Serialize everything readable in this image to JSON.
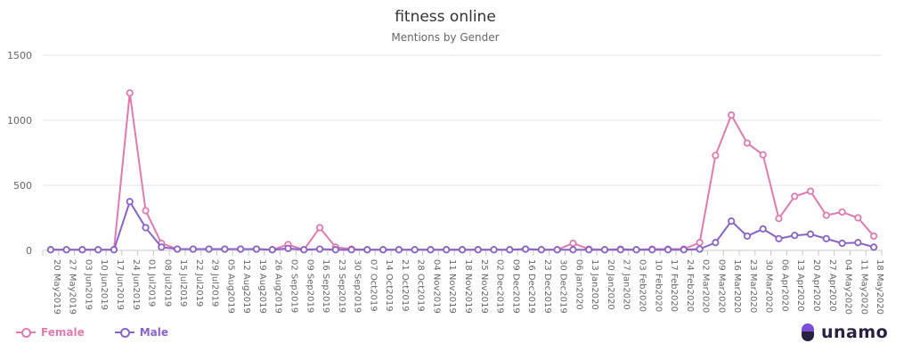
{
  "chart_data": {
    "type": "line",
    "title": "fitness online",
    "subtitle": "Mentions by Gender",
    "xlabel": "",
    "ylabel": "",
    "ylim": [
      0,
      1500
    ],
    "yticks": [
      0,
      500,
      1000,
      1500
    ],
    "grid": true,
    "legend_position": "bottom-left",
    "categories": [
      "20 May2019",
      "27 May2019",
      "03 Jun2019",
      "10 Jun2019",
      "17 Jun2019",
      "24 Jun2019",
      "01 Jul2019",
      "08 Jul2019",
      "15 Jul2019",
      "22 Jul2019",
      "29 Jul2019",
      "05 Aug2019",
      "12 Aug2019",
      "19 Aug2019",
      "26 Aug2019",
      "02 Sep2019",
      "09 Sep2019",
      "16 Sep2019",
      "23 Sep2019",
      "30 Sep2019",
      "07 Oct2019",
      "14 Oct2019",
      "21 Oct2019",
      "28 Oct2019",
      "04 Nov2019",
      "11 Nov2019",
      "18 Nov2019",
      "25 Nov2019",
      "02 Dec2019",
      "09 Dec2019",
      "16 Dec2019",
      "23 Dec2019",
      "30 Dec2019",
      "06 Jan2020",
      "13 Jan2020",
      "20 Jan2020",
      "27 Jan2020",
      "03 Feb2020",
      "10 Feb2020",
      "17 Feb2020",
      "24 Feb2020",
      "02 Mar2020",
      "09 Mar2020",
      "16 Mar2020",
      "23 Mar2020",
      "30 Mar2020",
      "06 Apr2020",
      "13 Apr2020",
      "20 Apr2020",
      "27 Apr2020",
      "04 May2020",
      "11 May2020",
      "18 May2020"
    ],
    "series": [
      {
        "name": "Female",
        "color": "#e07bb0",
        "values": [
          5,
          5,
          5,
          5,
          5,
          1210,
          305,
          55,
          10,
          10,
          10,
          10,
          10,
          10,
          5,
          45,
          5,
          175,
          25,
          10,
          5,
          5,
          5,
          5,
          5,
          5,
          5,
          5,
          5,
          5,
          10,
          5,
          5,
          55,
          10,
          5,
          10,
          5,
          10,
          10,
          10,
          60,
          730,
          1040,
          825,
          735,
          245,
          415,
          455,
          270,
          295,
          250,
          110
        ]
      },
      {
        "name": "Male",
        "color": "#8a63c7",
        "values": [
          5,
          5,
          5,
          5,
          5,
          375,
          175,
          25,
          10,
          10,
          10,
          10,
          10,
          10,
          5,
          15,
          5,
          10,
          5,
          5,
          5,
          5,
          5,
          5,
          5,
          5,
          5,
          5,
          5,
          5,
          10,
          5,
          5,
          5,
          5,
          5,
          5,
          5,
          5,
          5,
          5,
          10,
          60,
          225,
          110,
          165,
          90,
          115,
          125,
          90,
          55,
          60,
          25
        ]
      }
    ]
  },
  "legend": {
    "female_label": "Female",
    "male_label": "Male"
  },
  "logo": {
    "text": "unamo",
    "icon": "unamo-logo-icon",
    "colors": {
      "top": "#7b4fd8",
      "bottom": "#2a2140"
    }
  }
}
